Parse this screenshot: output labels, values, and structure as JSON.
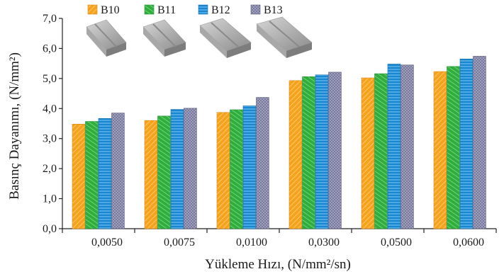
{
  "chart_data": {
    "type": "bar",
    "xlabel": "Yükleme Hızı, (N/mm²/sn)",
    "ylabel": "Basınç Dayanımı, (N/mm²)",
    "categories": [
      "0,0050",
      "0,0075",
      "0,0100",
      "0,0300",
      "0,0500",
      "0,0600"
    ],
    "yticks": [
      "0,0",
      "1,0",
      "2,0",
      "3,0",
      "4,0",
      "5,0",
      "6,0",
      "7,0"
    ],
    "ylim": [
      0,
      7
    ],
    "grid": false,
    "legend_position": "top-left",
    "series": [
      {
        "name": "B10",
        "color": "#f7a21b",
        "values": [
          3.48,
          3.6,
          3.87,
          4.93,
          5.02,
          5.23
        ]
      },
      {
        "name": "B11",
        "color": "#3cb94a",
        "values": [
          3.57,
          3.75,
          3.96,
          5.06,
          5.16,
          5.4
        ]
      },
      {
        "name": "B12",
        "color": "#1f8fd6",
        "values": [
          3.67,
          3.97,
          4.09,
          5.12,
          5.48,
          5.65
        ]
      },
      {
        "name": "B13",
        "color": "#7b7b9c",
        "values": [
          3.85,
          4.01,
          4.37,
          5.21,
          5.45,
          5.74
        ]
      }
    ]
  }
}
